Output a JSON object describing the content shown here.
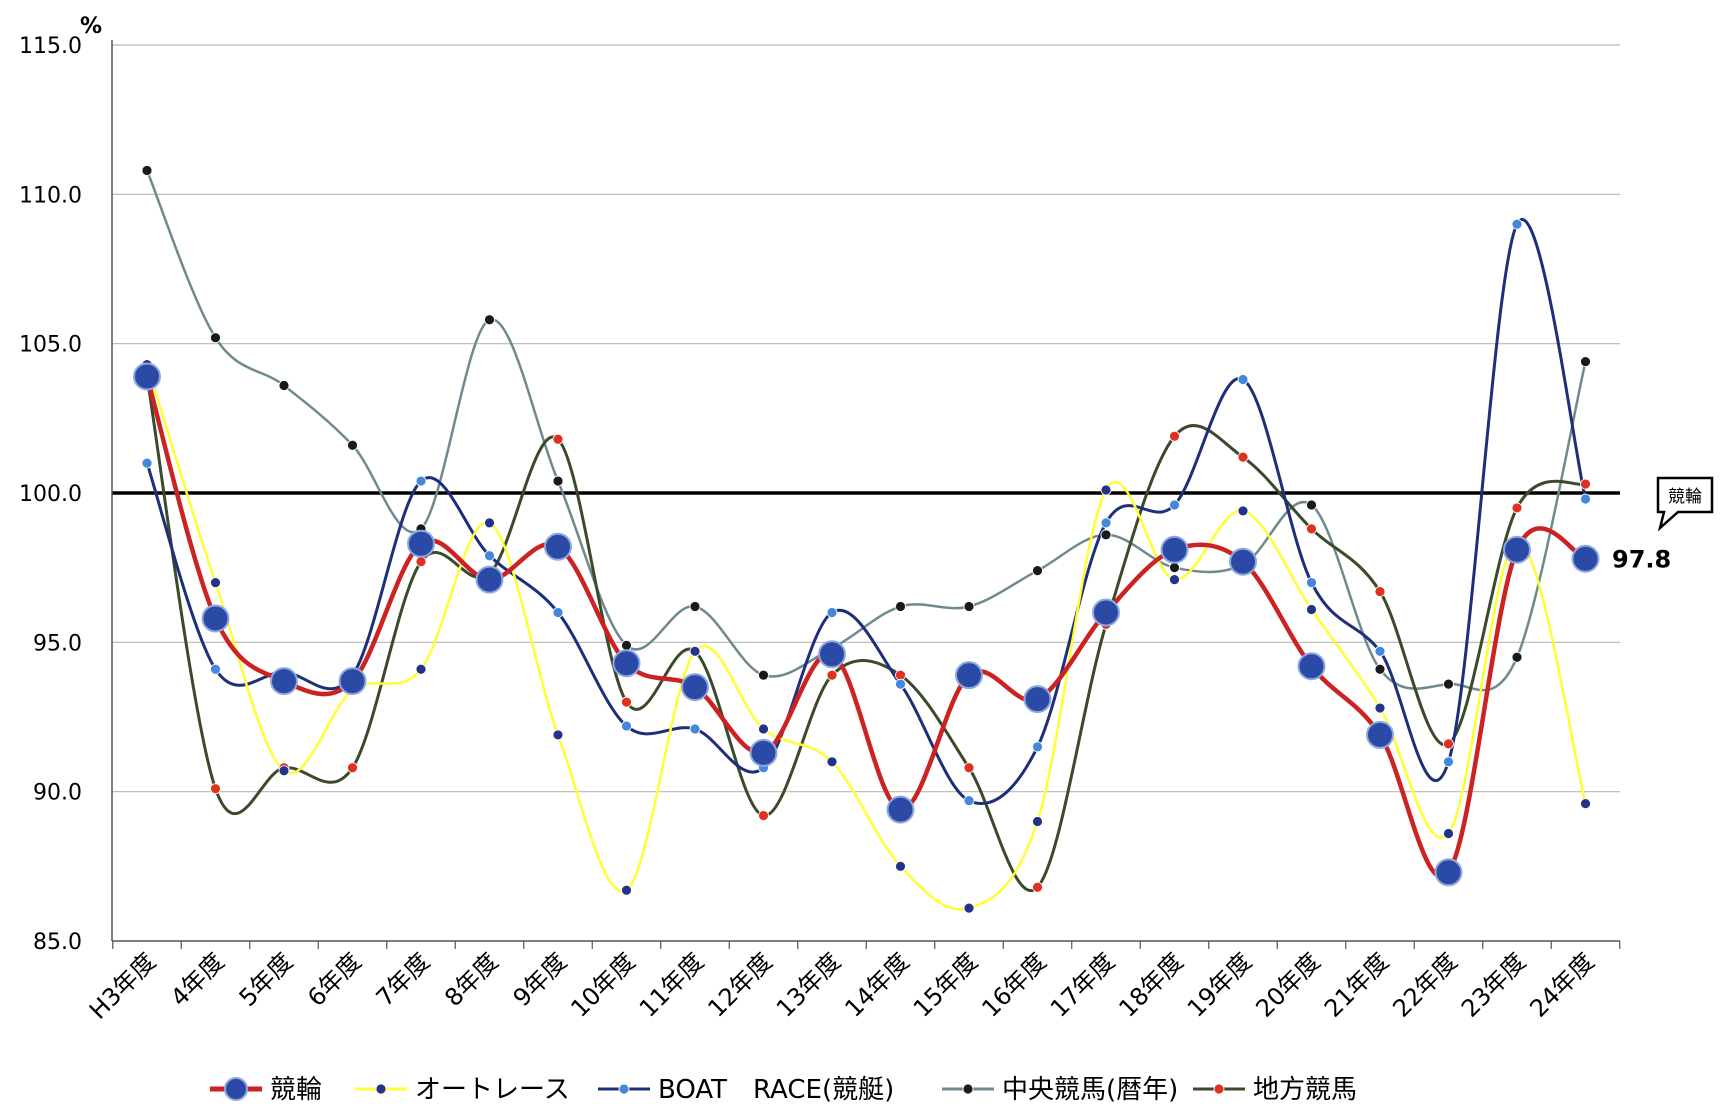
{
  "chart_data": {
    "type": "line",
    "unit": "%",
    "categories": [
      "H3年度",
      "4年度",
      "5年度",
      "6年度",
      "7年度",
      "8年度",
      "9年度",
      "10年度",
      "11年度",
      "12年度",
      "13年度",
      "14年度",
      "15年度",
      "16年度",
      "17年度",
      "18年度",
      "19年度",
      "20年度",
      "21年度",
      "22年度",
      "23年度",
      "24年度"
    ],
    "ylim": [
      85.0,
      115.0
    ],
    "yticks": [
      "85.0",
      "90.0",
      "95.0",
      "100.0",
      "105.0",
      "110.0",
      "115.0"
    ],
    "grid": true,
    "reference_line": 100.0,
    "legend_position": "bottom",
    "series": [
      {
        "name": "競輪",
        "color": "#cc2222",
        "marker_color": "#2a4aa6",
        "values": [
          103.9,
          95.8,
          93.7,
          93.7,
          98.3,
          97.1,
          98.2,
          94.3,
          93.5,
          91.3,
          94.6,
          89.4,
          93.9,
          93.1,
          96.0,
          98.1,
          97.7,
          94.2,
          91.9,
          87.3,
          98.1,
          97.8
        ]
      },
      {
        "name": "オートレース",
        "color": "#ffff33",
        "marker_color": "#223388",
        "values": [
          104.3,
          97.0,
          90.7,
          93.4,
          94.1,
          99.0,
          91.9,
          86.7,
          94.7,
          92.1,
          91.0,
          87.5,
          86.1,
          89.0,
          100.1,
          97.1,
          99.4,
          96.1,
          92.8,
          88.6,
          98.4,
          89.6
        ]
      },
      {
        "name": "BOAT　RACE(競艇)",
        "color": "#1e2f7a",
        "marker_color": "#4488dd",
        "values": [
          101.0,
          94.1,
          94.0,
          93.9,
          100.4,
          97.9,
          96.0,
          92.2,
          92.1,
          90.8,
          96.0,
          93.6,
          89.7,
          91.5,
          99.0,
          99.6,
          103.8,
          97.0,
          94.7,
          91.0,
          109.0,
          99.8
        ]
      },
      {
        "name": "中央競馬(暦年)",
        "color": "#6f8a8e",
        "marker_color": "#1a1a1a",
        "values": [
          110.8,
          105.2,
          103.6,
          101.6,
          98.8,
          105.8,
          100.4,
          94.9,
          96.2,
          93.9,
          94.8,
          96.2,
          96.2,
          97.4,
          98.6,
          97.5,
          97.6,
          99.6,
          94.1,
          93.6,
          94.5,
          104.4
        ]
      },
      {
        "name": "地方競馬",
        "color": "#3b4a2a",
        "marker_color": "#e03020",
        "values": [
          103.9,
          90.1,
          90.8,
          90.8,
          97.7,
          97.3,
          101.8,
          93.0,
          94.7,
          89.2,
          93.9,
          93.9,
          90.8,
          86.8,
          95.6,
          101.9,
          101.2,
          98.8,
          96.7,
          91.6,
          99.5,
          100.3
        ]
      }
    ],
    "annotations": [
      {
        "text": "競輪",
        "type": "callout"
      },
      {
        "text": "97.8",
        "type": "value-label"
      }
    ]
  }
}
